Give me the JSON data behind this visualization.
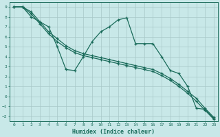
{
  "xlabel": "Humidex (Indice chaleur)",
  "bg_color": "#c8e8e8",
  "grid_color": "#a8c8c8",
  "line_color": "#1a6b5a",
  "xlim": [
    -0.5,
    23.5
  ],
  "ylim": [
    -2.5,
    9.5
  ],
  "xticks": [
    0,
    1,
    2,
    3,
    4,
    5,
    6,
    7,
    8,
    9,
    10,
    11,
    12,
    13,
    14,
    15,
    16,
    17,
    18,
    19,
    20,
    21,
    22,
    23
  ],
  "yticks": [
    -2,
    -1,
    0,
    1,
    2,
    3,
    4,
    5,
    6,
    7,
    8,
    9
  ],
  "line1_x": [
    0,
    1,
    2,
    3,
    4,
    5,
    6,
    7,
    8,
    9,
    10,
    11,
    12,
    13,
    14,
    15,
    16,
    17,
    18,
    19,
    20,
    21,
    22,
    23
  ],
  "line1_y": [
    9.0,
    9.0,
    8.0,
    7.5,
    7.0,
    5.0,
    2.7,
    2.6,
    4.0,
    5.5,
    6.5,
    7.0,
    7.7,
    7.9,
    5.3,
    5.3,
    5.3,
    4.0,
    2.6,
    2.3,
    1.0,
    -1.2,
    -1.3,
    -2.2
  ],
  "line2_x": [
    0,
    1,
    2,
    3,
    4,
    5,
    6,
    7,
    8,
    9,
    10,
    11,
    12,
    13,
    14,
    15,
    16,
    17,
    18,
    19,
    20,
    21,
    22,
    23
  ],
  "line2_y": [
    9.0,
    9.0,
    8.5,
    7.5,
    6.5,
    5.8,
    5.1,
    4.6,
    4.3,
    4.1,
    3.9,
    3.7,
    3.5,
    3.3,
    3.1,
    2.9,
    2.7,
    2.3,
    1.8,
    1.2,
    0.5,
    -0.2,
    -1.2,
    -2.1
  ],
  "line3_x": [
    0,
    1,
    2,
    3,
    4,
    5,
    6,
    7,
    8,
    9,
    10,
    11,
    12,
    13,
    14,
    15,
    16,
    17,
    18,
    19,
    20,
    21,
    22,
    23
  ],
  "line3_y": [
    9.0,
    9.0,
    8.3,
    7.3,
    6.3,
    5.5,
    4.9,
    4.4,
    4.1,
    3.9,
    3.7,
    3.5,
    3.3,
    3.1,
    2.9,
    2.7,
    2.5,
    2.1,
    1.6,
    1.0,
    0.3,
    -0.5,
    -1.4,
    -2.3
  ]
}
